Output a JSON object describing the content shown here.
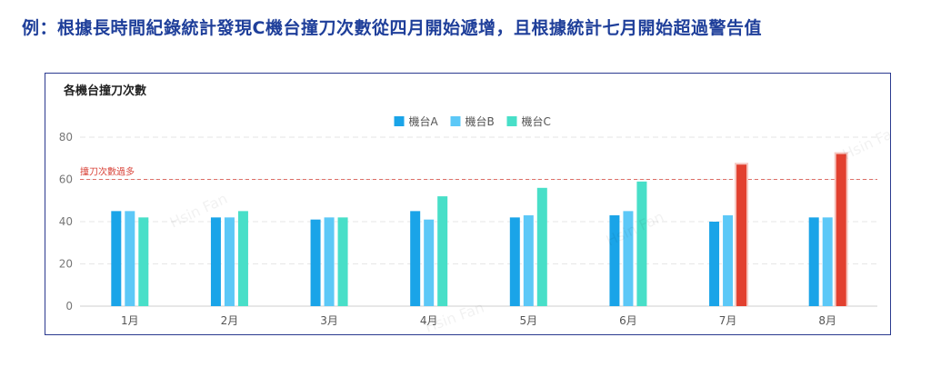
{
  "headline": "例：根據長時間紀錄統計發現C機台撞刀次數從四月開始遞增，且根據統計七月開始超過警告值",
  "chart_data": {
    "type": "bar",
    "title": "各機台撞刀次數",
    "categories": [
      "1月",
      "2月",
      "3月",
      "4月",
      "5月",
      "6月",
      "7月",
      "8月"
    ],
    "series": [
      {
        "name": "機台A",
        "color": "#1aa4e8",
        "values": [
          45,
          42,
          41,
          45,
          42,
          43,
          40,
          42
        ]
      },
      {
        "name": "機台B",
        "color": "#5cc8f7",
        "values": [
          45,
          42,
          42,
          41,
          43,
          45,
          43,
          42
        ]
      },
      {
        "name": "機台C",
        "color": "#48dfc8",
        "values": [
          42,
          45,
          42,
          52,
          56,
          59,
          67,
          72
        ]
      }
    ],
    "alert_color": "#e2402f",
    "threshold": {
      "value": 60,
      "label": "撞刀次數過多",
      "color": "#d9453b"
    },
    "ylim": [
      0,
      80
    ],
    "yticks": [
      0,
      20,
      40,
      60,
      80
    ],
    "grid": true,
    "legend_position": "top-center",
    "watermark": "Hsin Fan"
  }
}
